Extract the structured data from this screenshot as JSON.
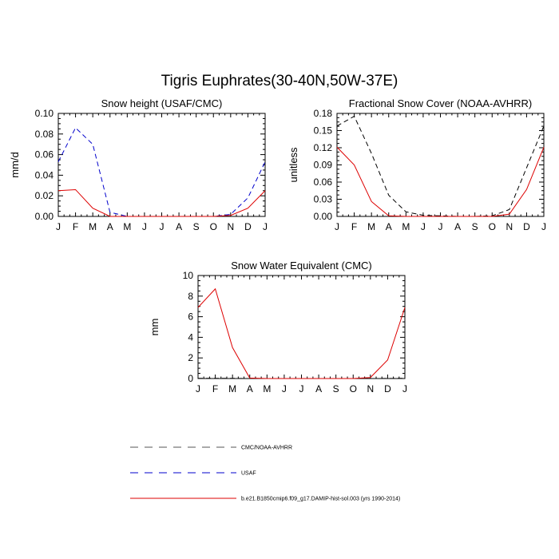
{
  "figure": {
    "title": "Tigris Euphrates(30-40N,50W-37E)"
  },
  "legend": [
    {
      "label": "CMC/NOAA-AVHRR",
      "color": "#000000",
      "dash": "dashed"
    },
    {
      "label": "USAF",
      "color": "#0000cc",
      "dash": "dashed"
    },
    {
      "label": "b.e21.B1850cmip6.f09_g17.DAMIP-hist-sol.003 (yrs 1990-2014)",
      "color": "#dd0000",
      "dash": "solid"
    }
  ],
  "chart_data": [
    {
      "type": "line",
      "title": "Snow height (USAF/CMC)",
      "xlabel": "",
      "ylabel": "mm/d",
      "categories": [
        "J",
        "F",
        "M",
        "A",
        "M",
        "J",
        "J",
        "A",
        "S",
        "O",
        "N",
        "D",
        "J"
      ],
      "ylim": [
        0,
        0.1
      ],
      "yticks": [
        0,
        0.02,
        0.04,
        0.06,
        0.08,
        0.1
      ],
      "yticklabels": [
        "0.00",
        "0.02",
        "0.04",
        "0.06",
        "0.08",
        "0.10"
      ],
      "series": [
        {
          "name": "USAF",
          "color": "#0000cc",
          "dash": "dashed",
          "values": [
            0.053,
            0.086,
            0.07,
            0.004,
            0.0,
            0.0,
            0.0,
            0.0,
            0.0,
            0.0,
            0.002,
            0.018,
            0.053
          ]
        },
        {
          "name": "b.e21.B1850cmip6.f09_g17.DAMIP-hist-sol.003 (yrs 1990-2014)",
          "color": "#dd0000",
          "dash": "solid",
          "values": [
            0.025,
            0.026,
            0.008,
            0.0,
            0.0,
            0.0,
            0.0,
            0.0,
            0.0,
            0.0,
            0.001,
            0.008,
            0.025
          ]
        }
      ]
    },
    {
      "type": "line",
      "title": "Fractional Snow Cover (NOAA-AVHRR)",
      "xlabel": "",
      "ylabel": "unitless",
      "categories": [
        "J",
        "F",
        "M",
        "A",
        "M",
        "J",
        "J",
        "A",
        "S",
        "O",
        "N",
        "D",
        "J"
      ],
      "ylim": [
        0,
        0.18
      ],
      "yticks": [
        0,
        0.03,
        0.06,
        0.09,
        0.12,
        0.15,
        0.18
      ],
      "yticklabels": [
        "0.00",
        "0.03",
        "0.06",
        "0.09",
        "0.12",
        "0.15",
        "0.18"
      ],
      "series": [
        {
          "name": "CMC/NOAA-AVHRR",
          "color": "#000000",
          "dash": "dashed",
          "values": [
            0.158,
            0.175,
            0.11,
            0.037,
            0.008,
            0.002,
            0.001,
            0.0,
            0.0,
            0.001,
            0.012,
            0.085,
            0.158
          ]
        },
        {
          "name": "b.e21.B1850cmip6.f09_g17.DAMIP-hist-sol.003 (yrs 1990-2014)",
          "color": "#dd0000",
          "dash": "solid",
          "values": [
            0.121,
            0.09,
            0.026,
            0.001,
            0.0,
            0.0,
            0.0,
            0.0,
            0.0,
            0.0,
            0.004,
            0.047,
            0.121
          ]
        }
      ]
    },
    {
      "type": "line",
      "title": "Snow Water Equivalent (CMC)",
      "xlabel": "",
      "ylabel": "mm",
      "categories": [
        "J",
        "F",
        "M",
        "A",
        "M",
        "J",
        "J",
        "A",
        "S",
        "O",
        "N",
        "D",
        "J"
      ],
      "ylim": [
        0,
        10
      ],
      "yticks": [
        0,
        2,
        4,
        6,
        8,
        10
      ],
      "yticklabels": [
        "0",
        "2",
        "4",
        "6",
        "8",
        "10"
      ],
      "series": [
        {
          "name": "CMC/NOAA-AVHRR",
          "color": "#000000",
          "dash": "dashed",
          "values": [
            0.02,
            0.02,
            0.02,
            0.0,
            0.0,
            0.0,
            0.0,
            0.0,
            0.0,
            0.0,
            0.0,
            0.01,
            0.02
          ]
        },
        {
          "name": "b.e21.B1850cmip6.f09_g17.DAMIP-hist-sol.003 (yrs 1990-2014)",
          "color": "#dd0000",
          "dash": "solid",
          "values": [
            6.9,
            8.7,
            3.0,
            0.05,
            0.0,
            0.0,
            0.0,
            0.0,
            0.0,
            0.0,
            0.1,
            1.8,
            6.9
          ]
        }
      ]
    }
  ]
}
